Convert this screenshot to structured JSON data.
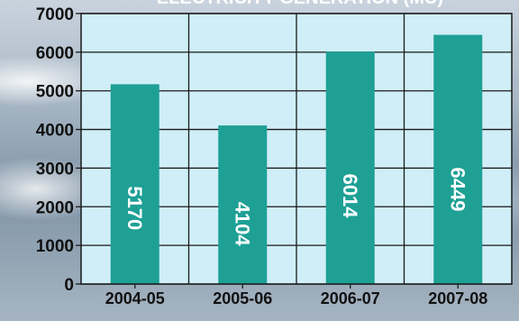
{
  "chart_data": {
    "type": "bar",
    "title": "ELECTRICITY GENERATION (MU)",
    "categories": [
      "2004-05",
      "2005-06",
      "2006-07",
      "2007-08"
    ],
    "values": [
      5170,
      4104,
      6014,
      6449
    ],
    "data_labels": [
      "5170",
      "4104",
      "6014",
      "6449"
    ],
    "ylim": [
      0,
      7000
    ],
    "yticks": [
      0,
      1000,
      2000,
      3000,
      4000,
      5000,
      6000,
      7000
    ],
    "xlabel": "",
    "ylabel": "",
    "grid": true,
    "legend": "none",
    "colors": {
      "bar": "#1ea095",
      "plot_bg": "#cfeef7",
      "grid": "#1a1a1a",
      "data_label": "#ffffff"
    }
  }
}
